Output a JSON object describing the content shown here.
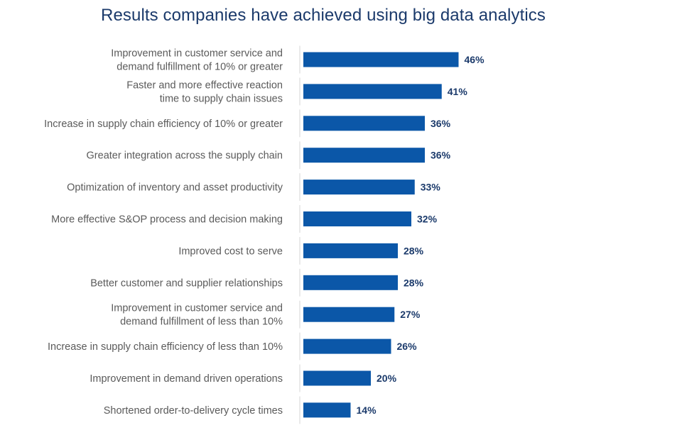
{
  "chart_data": {
    "type": "bar",
    "orientation": "horizontal",
    "title": "Results companies have achieved using big data analytics",
    "xlabel": "",
    "ylabel": "",
    "xlim": [
      0,
      50
    ],
    "grid": false,
    "legend": "none",
    "bar_color": "#0b57a8",
    "categories": [
      [
        "Improvement in customer service and",
        "demand fulfillment of 10% or greater"
      ],
      [
        "Faster and more effective reaction",
        "time to supply chain issues"
      ],
      [
        "Increase in supply chain efficiency of 10% or greater"
      ],
      [
        "Greater integration across the supply chain"
      ],
      [
        "Optimization of inventory and asset productivity"
      ],
      [
        "More effective S&OP process and decision making"
      ],
      [
        "Improved cost to serve"
      ],
      [
        "Better customer and supplier relationships"
      ],
      [
        "Improvement in customer service and",
        "demand fulfillment of less than 10%"
      ],
      [
        "Increase in supply chain efficiency of less than 10%"
      ],
      [
        "Improvement in demand driven operations"
      ],
      [
        "Shortened order-to-delivery cycle times"
      ]
    ],
    "values": [
      46,
      41,
      36,
      36,
      33,
      32,
      28,
      28,
      27,
      26,
      20,
      14
    ],
    "value_labels": [
      "46%",
      "41%",
      "36%",
      "36%",
      "33%",
      "32%",
      "28%",
      "28%",
      "27%",
      "26%",
      "20%",
      "14%"
    ]
  }
}
